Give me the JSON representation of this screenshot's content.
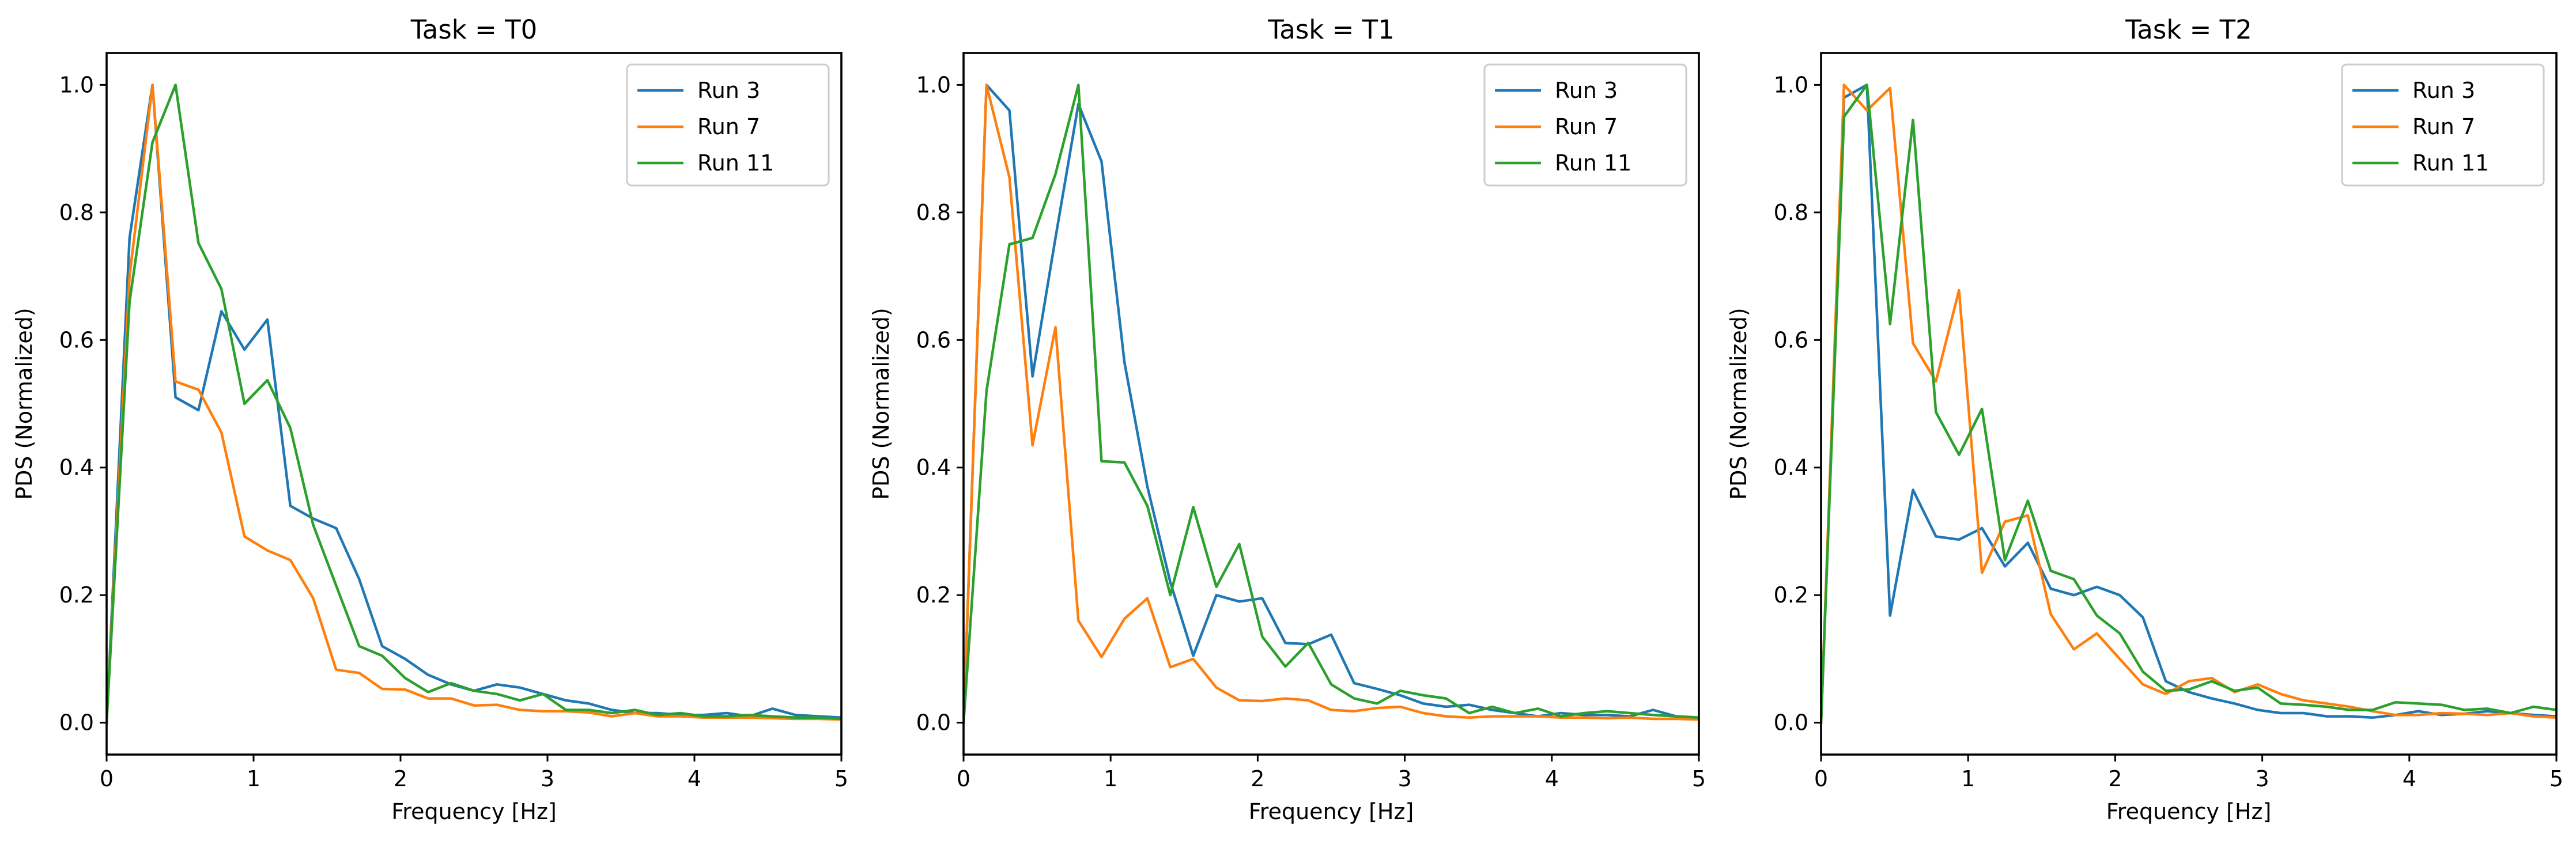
{
  "chart_data": [
    {
      "type": "line",
      "title": "Task = T0",
      "xlabel": "Frequency [Hz]",
      "ylabel": "PDS (Normalized)",
      "xlim": [
        0,
        5
      ],
      "ylim": [
        -0.05,
        1.05
      ],
      "xticks": [
        "0",
        "1",
        "2",
        "3",
        "4",
        "5"
      ],
      "yticks": [
        "0.0",
        "0.2",
        "0.4",
        "0.6",
        "0.8",
        "1.0"
      ],
      "legend": "top-right",
      "grid": false,
      "series": [
        {
          "name": "Run 3",
          "color": "#1f77b4",
          "x": [
            0,
            0.156,
            0.312,
            0.469,
            0.625,
            0.781,
            0.938,
            1.094,
            1.25,
            1.406,
            1.562,
            1.719,
            1.875,
            2.031,
            2.188,
            2.344,
            2.5,
            2.656,
            2.812,
            2.969,
            3.125,
            3.281,
            3.438,
            3.594,
            3.75,
            3.906,
            4.062,
            4.219,
            4.375,
            4.531,
            4.688,
            4.844,
            5
          ],
          "y": [
            0,
            0.76,
            1.0,
            0.51,
            0.49,
            0.645,
            0.585,
            0.632,
            0.34,
            0.32,
            0.305,
            0.225,
            0.12,
            0.1,
            0.075,
            0.06,
            0.05,
            0.06,
            0.055,
            0.045,
            0.035,
            0.03,
            0.02,
            0.015,
            0.015,
            0.012,
            0.012,
            0.015,
            0.01,
            0.022,
            0.012,
            0.01,
            0.008
          ]
        },
        {
          "name": "Run 7",
          "color": "#ff7f0e",
          "x": [
            0,
            0.156,
            0.312,
            0.469,
            0.625,
            0.781,
            0.938,
            1.094,
            1.25,
            1.406,
            1.562,
            1.719,
            1.875,
            2.031,
            2.188,
            2.344,
            2.5,
            2.656,
            2.812,
            2.969,
            3.125,
            3.281,
            3.438,
            3.594,
            3.75,
            3.906,
            4.062,
            4.219,
            4.375,
            4.531,
            4.688,
            4.844,
            5
          ],
          "y": [
            0,
            0.7,
            1.0,
            0.535,
            0.522,
            0.455,
            0.292,
            0.27,
            0.255,
            0.195,
            0.083,
            0.078,
            0.053,
            0.052,
            0.038,
            0.038,
            0.027,
            0.028,
            0.02,
            0.018,
            0.018,
            0.016,
            0.01,
            0.015,
            0.01,
            0.01,
            0.008,
            0.008,
            0.008,
            0.007,
            0.006,
            0.006,
            0.005
          ]
        },
        {
          "name": "Run 11",
          "color": "#2ca02c",
          "x": [
            0,
            0.156,
            0.312,
            0.469,
            0.625,
            0.781,
            0.938,
            1.094,
            1.25,
            1.406,
            1.562,
            1.719,
            1.875,
            2.031,
            2.188,
            2.344,
            2.5,
            2.656,
            2.812,
            2.969,
            3.125,
            3.281,
            3.438,
            3.594,
            3.75,
            3.906,
            4.062,
            4.219,
            4.375,
            4.531,
            4.688,
            4.844,
            5
          ],
          "y": [
            0,
            0.66,
            0.91,
            1.0,
            0.752,
            0.68,
            0.5,
            0.537,
            0.462,
            0.31,
            0.215,
            0.12,
            0.105,
            0.07,
            0.048,
            0.062,
            0.05,
            0.045,
            0.035,
            0.045,
            0.02,
            0.02,
            0.015,
            0.02,
            0.012,
            0.015,
            0.01,
            0.01,
            0.012,
            0.01,
            0.008,
            0.008,
            0.006
          ]
        }
      ]
    },
    {
      "type": "line",
      "title": "Task = T1",
      "xlabel": "Frequency [Hz]",
      "ylabel": "PDS (Normalized)",
      "xlim": [
        0,
        5
      ],
      "ylim": [
        -0.05,
        1.05
      ],
      "xticks": [
        "0",
        "1",
        "2",
        "3",
        "4",
        "5"
      ],
      "yticks": [
        "0.0",
        "0.2",
        "0.4",
        "0.6",
        "0.8",
        "1.0"
      ],
      "legend": "top-right",
      "grid": false,
      "series": [
        {
          "name": "Run 3",
          "color": "#1f77b4",
          "x": [
            0,
            0.156,
            0.312,
            0.469,
            0.625,
            0.781,
            0.938,
            1.094,
            1.25,
            1.406,
            1.562,
            1.719,
            1.875,
            2.031,
            2.188,
            2.344,
            2.5,
            2.656,
            2.812,
            2.969,
            3.125,
            3.281,
            3.438,
            3.594,
            3.75,
            3.906,
            4.062,
            4.219,
            4.375,
            4.531,
            4.688,
            4.844,
            5
          ],
          "y": [
            0,
            1.0,
            0.96,
            0.543,
            0.76,
            0.97,
            0.88,
            0.565,
            0.37,
            0.22,
            0.105,
            0.2,
            0.19,
            0.195,
            0.125,
            0.123,
            0.138,
            0.062,
            0.053,
            0.043,
            0.03,
            0.025,
            0.028,
            0.02,
            0.015,
            0.01,
            0.015,
            0.012,
            0.012,
            0.01,
            0.02,
            0.01,
            0.008
          ]
        },
        {
          "name": "Run 7",
          "color": "#ff7f0e",
          "x": [
            0,
            0.156,
            0.312,
            0.469,
            0.625,
            0.781,
            0.938,
            1.094,
            1.25,
            1.406,
            1.562,
            1.719,
            1.875,
            2.031,
            2.188,
            2.344,
            2.5,
            2.656,
            2.812,
            2.969,
            3.125,
            3.281,
            3.438,
            3.594,
            3.75,
            3.906,
            4.062,
            4.219,
            4.375,
            4.531,
            4.688,
            4.844,
            5
          ],
          "y": [
            0,
            1.0,
            0.855,
            0.435,
            0.62,
            0.16,
            0.103,
            0.163,
            0.195,
            0.087,
            0.1,
            0.055,
            0.035,
            0.034,
            0.038,
            0.035,
            0.02,
            0.018,
            0.023,
            0.025,
            0.015,
            0.01,
            0.008,
            0.01,
            0.01,
            0.01,
            0.008,
            0.008,
            0.007,
            0.008,
            0.006,
            0.006,
            0.005
          ]
        },
        {
          "name": "Run 11",
          "color": "#2ca02c",
          "x": [
            0,
            0.156,
            0.312,
            0.469,
            0.625,
            0.781,
            0.938,
            1.094,
            1.25,
            1.406,
            1.562,
            1.719,
            1.875,
            2.031,
            2.188,
            2.344,
            2.5,
            2.656,
            2.812,
            2.969,
            3.125,
            3.281,
            3.438,
            3.594,
            3.75,
            3.906,
            4.062,
            4.219,
            4.375,
            4.531,
            4.688,
            4.844,
            5
          ],
          "y": [
            0,
            0.52,
            0.75,
            0.76,
            0.86,
            1.0,
            0.41,
            0.408,
            0.34,
            0.2,
            0.338,
            0.213,
            0.28,
            0.135,
            0.088,
            0.125,
            0.06,
            0.038,
            0.03,
            0.05,
            0.043,
            0.038,
            0.015,
            0.025,
            0.015,
            0.022,
            0.01,
            0.015,
            0.018,
            0.015,
            0.012,
            0.01,
            0.008
          ]
        }
      ]
    },
    {
      "type": "line",
      "title": "Task = T2",
      "xlabel": "Frequency [Hz]",
      "ylabel": "PDS (Normalized)",
      "xlim": [
        0,
        5
      ],
      "ylim": [
        -0.05,
        1.05
      ],
      "xticks": [
        "0",
        "1",
        "2",
        "3",
        "4",
        "5"
      ],
      "yticks": [
        "0.0",
        "0.2",
        "0.4",
        "0.6",
        "0.8",
        "1.0"
      ],
      "legend": "top-right",
      "grid": false,
      "series": [
        {
          "name": "Run 3",
          "color": "#1f77b4",
          "x": [
            0,
            0.156,
            0.312,
            0.469,
            0.625,
            0.781,
            0.938,
            1.094,
            1.25,
            1.406,
            1.562,
            1.719,
            1.875,
            2.031,
            2.188,
            2.344,
            2.5,
            2.656,
            2.812,
            2.969,
            3.125,
            3.281,
            3.438,
            3.594,
            3.75,
            3.906,
            4.062,
            4.219,
            4.375,
            4.531,
            4.688,
            4.844,
            5
          ],
          "y": [
            0,
            0.98,
            1.0,
            0.168,
            0.365,
            0.292,
            0.287,
            0.305,
            0.245,
            0.282,
            0.21,
            0.2,
            0.213,
            0.2,
            0.165,
            0.065,
            0.048,
            0.038,
            0.03,
            0.02,
            0.015,
            0.015,
            0.01,
            0.01,
            0.008,
            0.012,
            0.018,
            0.012,
            0.014,
            0.018,
            0.015,
            0.012,
            0.01
          ]
        },
        {
          "name": "Run 7",
          "color": "#ff7f0e",
          "x": [
            0,
            0.156,
            0.312,
            0.469,
            0.625,
            0.781,
            0.938,
            1.094,
            1.25,
            1.406,
            1.562,
            1.719,
            1.875,
            2.031,
            2.188,
            2.344,
            2.5,
            2.656,
            2.812,
            2.969,
            3.125,
            3.281,
            3.438,
            3.594,
            3.75,
            3.906,
            4.062,
            4.219,
            4.375,
            4.531,
            4.688,
            4.844,
            5
          ],
          "y": [
            0,
            1.0,
            0.96,
            0.995,
            0.595,
            0.535,
            0.678,
            0.235,
            0.315,
            0.325,
            0.17,
            0.115,
            0.14,
            0.1,
            0.06,
            0.045,
            0.065,
            0.07,
            0.048,
            0.06,
            0.045,
            0.035,
            0.03,
            0.025,
            0.018,
            0.012,
            0.012,
            0.015,
            0.014,
            0.012,
            0.015,
            0.01,
            0.008
          ]
        },
        {
          "name": "Run 11",
          "color": "#2ca02c",
          "x": [
            0,
            0.156,
            0.312,
            0.469,
            0.625,
            0.781,
            0.938,
            1.094,
            1.25,
            1.406,
            1.562,
            1.719,
            1.875,
            2.031,
            2.188,
            2.344,
            2.5,
            2.656,
            2.812,
            2.969,
            3.125,
            3.281,
            3.438,
            3.594,
            3.75,
            3.906,
            4.062,
            4.219,
            4.375,
            4.531,
            4.688,
            4.844,
            5
          ],
          "y": [
            0,
            0.95,
            1.0,
            0.625,
            0.945,
            0.487,
            0.42,
            0.492,
            0.255,
            0.348,
            0.238,
            0.225,
            0.168,
            0.14,
            0.08,
            0.05,
            0.052,
            0.065,
            0.05,
            0.055,
            0.03,
            0.028,
            0.025,
            0.02,
            0.02,
            0.032,
            0.03,
            0.028,
            0.02,
            0.022,
            0.015,
            0.025,
            0.02
          ]
        }
      ]
    }
  ]
}
